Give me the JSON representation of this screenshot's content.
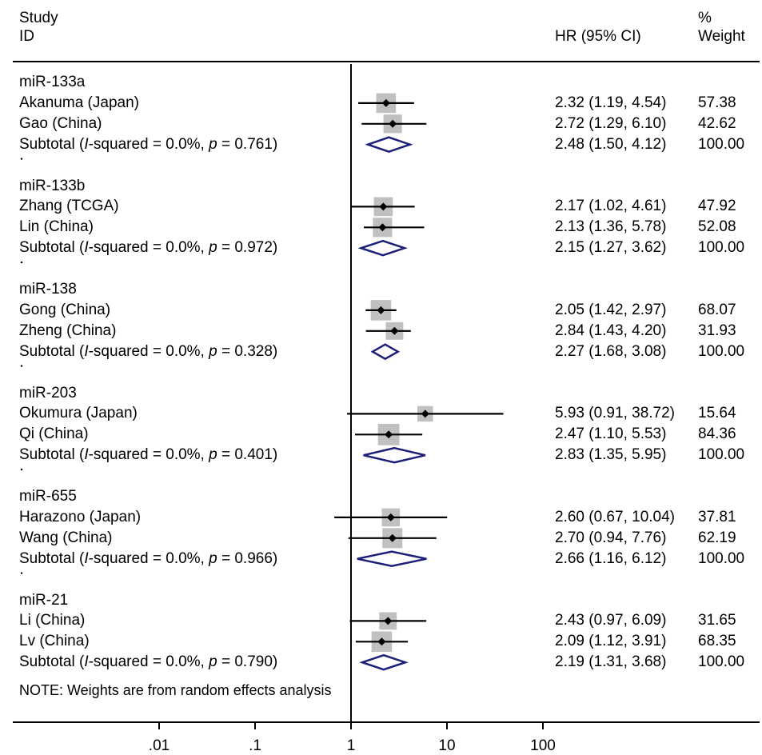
{
  "header": {
    "study_line1": "Study",
    "study_line2": "ID",
    "hr": "HR (95% CI)",
    "weight_line1": "%",
    "weight_line2": "Weight"
  },
  "note": "NOTE: Weights are from random effects analysis",
  "chart_data": {
    "type": "forest",
    "x_scale": "log",
    "x_ticks": [
      ".01",
      ".1",
      "1",
      "10",
      "100"
    ],
    "x_tick_values": [
      0.01,
      0.1,
      1,
      10,
      100
    ],
    "reference_line": 1,
    "groups": [
      {
        "name": "miR-133a",
        "studies": [
          {
            "label": "Akanuma (Japan)",
            "hr": 2.32,
            "lo": 1.19,
            "hi": 4.54,
            "weight": 57.38,
            "hr_text": "2.32 (1.19, 4.54)",
            "w_text": "57.38"
          },
          {
            "label": "Gao (China)",
            "hr": 2.72,
            "lo": 1.29,
            "hi": 6.1,
            "weight": 42.62,
            "hr_text": "2.72 (1.29, 6.10)",
            "w_text": "42.62"
          }
        ],
        "subtotal": {
          "prefix": "Subtotal  (",
          "i": "I",
          "mid": "-squared = 0.0%,  ",
          "p": "p",
          "tail": " = 0.761)",
          "hr": 2.48,
          "lo": 1.5,
          "hi": 4.12,
          "hr_text": "2.48 (1.50, 4.12)",
          "w_text": "100.00"
        }
      },
      {
        "name": "miR-133b",
        "studies": [
          {
            "label": "Zhang (TCGA)",
            "hr": 2.17,
            "lo": 1.02,
            "hi": 4.61,
            "weight": 47.92,
            "hr_text": "2.17 (1.02, 4.61)",
            "w_text": "47.92"
          },
          {
            "label": "Lin (China)",
            "hr": 2.13,
            "lo": 1.36,
            "hi": 5.78,
            "weight": 52.08,
            "hr_text": "2.13 (1.36, 5.78)",
            "w_text": "52.08"
          }
        ],
        "subtotal": {
          "prefix": "Subtotal  (",
          "i": "I",
          "mid": "-squared = 0.0%,  ",
          "p": "p",
          "tail": " = 0.972)",
          "hr": 2.15,
          "lo": 1.27,
          "hi": 3.62,
          "hr_text": "2.15 (1.27, 3.62)",
          "w_text": "100.00"
        }
      },
      {
        "name": "miR-138",
        "studies": [
          {
            "label": "Gong (China)",
            "hr": 2.05,
            "lo": 1.42,
            "hi": 2.97,
            "weight": 68.07,
            "hr_text": "2.05 (1.42, 2.97)",
            "w_text": "68.07"
          },
          {
            "label": "Zheng (China)",
            "hr": 2.84,
            "lo": 1.43,
            "hi": 4.2,
            "weight": 31.93,
            "hr_text": "2.84 (1.43, 4.20)",
            "w_text": "31.93"
          }
        ],
        "subtotal": {
          "prefix": "Subtotal  (",
          "i": "I",
          "mid": "-squared = 0.0%,  ",
          "p": "p",
          "tail": " = 0.328)",
          "hr": 2.27,
          "lo": 1.68,
          "hi": 3.08,
          "hr_text": "2.27 (1.68, 3.08)",
          "w_text": "100.00"
        }
      },
      {
        "name": "miR-203",
        "studies": [
          {
            "label": "Okumura (Japan)",
            "hr": 5.93,
            "lo": 0.91,
            "hi": 38.72,
            "weight": 15.64,
            "hr_text": "5.93 (0.91, 38.72)",
            "w_text": "15.64"
          },
          {
            "label": "Qi (China)",
            "hr": 2.47,
            "lo": 1.1,
            "hi": 5.53,
            "weight": 84.36,
            "hr_text": "2.47 (1.10, 5.53)",
            "w_text": "84.36"
          }
        ],
        "subtotal": {
          "prefix": "Subtotal  (",
          "i": "I",
          "mid": "-squared = 0.0%,  ",
          "p": "p",
          "tail": " = 0.401)",
          "hr": 2.83,
          "lo": 1.35,
          "hi": 5.95,
          "hr_text": "2.83 (1.35, 5.95)",
          "w_text": "100.00"
        }
      },
      {
        "name": "miR-655",
        "studies": [
          {
            "label": "Harazono (Japan)",
            "hr": 2.6,
            "lo": 0.67,
            "hi": 10.04,
            "weight": 37.81,
            "hr_text": "2.60 (0.67, 10.04)",
            "w_text": "37.81"
          },
          {
            "label": "Wang (China)",
            "hr": 2.7,
            "lo": 0.94,
            "hi": 7.76,
            "weight": 62.19,
            "hr_text": "2.70 (0.94, 7.76)",
            "w_text": "62.19"
          }
        ],
        "subtotal": {
          "prefix": "Subtotal  (",
          "i": "I",
          "mid": "-squared = 0.0%,  ",
          "p": "p",
          "tail": " = 0.966)",
          "hr": 2.66,
          "lo": 1.16,
          "hi": 6.12,
          "hr_text": "2.66 (1.16, 6.12)",
          "w_text": "100.00"
        }
      },
      {
        "name": "miR-21",
        "studies": [
          {
            "label": "Li (China)",
            "hr": 2.43,
            "lo": 0.97,
            "hi": 6.09,
            "weight": 31.65,
            "hr_text": "2.43 (0.97, 6.09)",
            "w_text": "31.65"
          },
          {
            "label": "Lv (China)",
            "hr": 2.09,
            "lo": 1.12,
            "hi": 3.91,
            "weight": 68.35,
            "hr_text": "2.09 (1.12, 3.91)",
            "w_text": "68.35"
          }
        ],
        "subtotal": {
          "prefix": "Subtotal  (",
          "i": "I",
          "mid": "-squared = 0.0%,  ",
          "p": "p",
          "tail": " = 0.790)",
          "hr": 2.19,
          "lo": 1.31,
          "hi": 3.68,
          "hr_text": "2.19 (1.31, 3.68)",
          "w_text": "100.00"
        }
      }
    ],
    "colors": {
      "box": "#c0c0c0",
      "diamond": "#1b1f7a",
      "line": "#000000"
    }
  }
}
